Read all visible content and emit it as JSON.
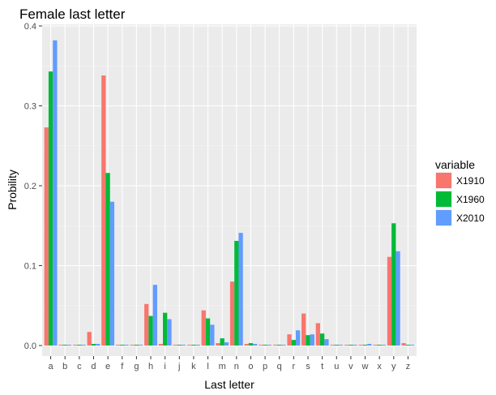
{
  "chart_data": {
    "type": "bar",
    "title": "Female last letter",
    "xlabel": "Last letter",
    "ylabel": "Probility",
    "ylim": [
      -0.013,
      0.4
    ],
    "yticks": [
      0.0,
      0.1,
      0.2,
      0.3,
      0.4
    ],
    "ytick_labels": [
      "0.0",
      "0.1",
      "0.2",
      "0.3",
      "0.4"
    ],
    "grid": true,
    "legend_position": "right",
    "legend_title": "variable",
    "categories": [
      "a",
      "b",
      "c",
      "d",
      "e",
      "f",
      "g",
      "h",
      "i",
      "j",
      "k",
      "l",
      "m",
      "n",
      "o",
      "p",
      "q",
      "r",
      "s",
      "t",
      "u",
      "v",
      "w",
      "x",
      "y",
      "z"
    ],
    "series": [
      {
        "name": "X1910",
        "color": "#F8766D",
        "values": [
          0.273,
          0.001,
          0.001,
          0.017,
          0.338,
          0.001,
          0.001,
          0.052,
          0.002,
          0.001,
          0.001,
          0.044,
          0.003,
          0.08,
          0.002,
          0.001,
          0.001,
          0.014,
          0.04,
          0.028,
          0.001,
          0.001,
          0.001,
          0.001,
          0.111,
          0.003
        ]
      },
      {
        "name": "X1960",
        "color": "#00BA38",
        "values": [
          0.343,
          0.001,
          0.001,
          0.002,
          0.216,
          0.001,
          0.001,
          0.037,
          0.041,
          0.001,
          0.001,
          0.034,
          0.009,
          0.131,
          0.003,
          0.001,
          0.001,
          0.007,
          0.013,
          0.015,
          0.001,
          0.001,
          0.001,
          0.001,
          0.153,
          0.001
        ]
      },
      {
        "name": "X2010",
        "color": "#619CFF",
        "values": [
          0.382,
          0.001,
          0.001,
          0.002,
          0.18,
          0.001,
          0.001,
          0.076,
          0.033,
          0.001,
          0.001,
          0.026,
          0.004,
          0.141,
          0.002,
          0.001,
          0.001,
          0.019,
          0.014,
          0.008,
          0.001,
          0.001,
          0.002,
          0.001,
          0.118,
          0.001
        ]
      }
    ]
  }
}
